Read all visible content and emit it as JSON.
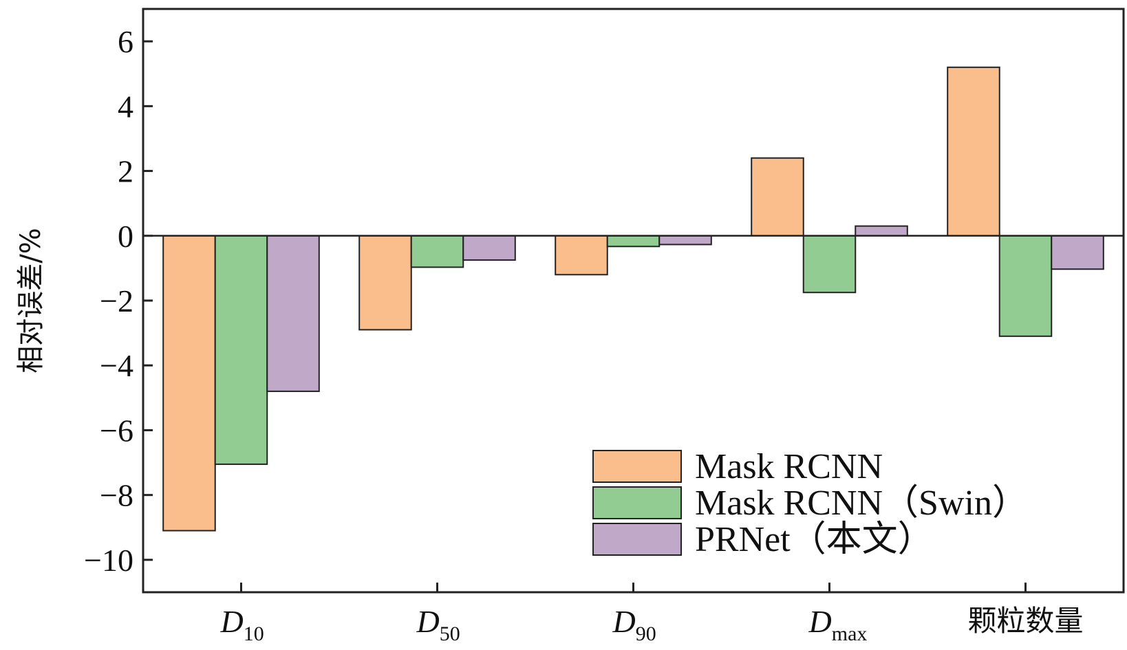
{
  "chart_data": {
    "type": "bar",
    "y_label": "相对误差/%",
    "categories": [
      "D10",
      "D50",
      "D90",
      "Dmax",
      "颗粒数量"
    ],
    "series": [
      {
        "name": "Mask RCNN",
        "color": "#f9be8c",
        "values": [
          -9.1,
          -2.9,
          -1.2,
          2.4,
          5.2
        ]
      },
      {
        "name": "Mask RCNN（Swin）",
        "color": "#93cc93",
        "values": [
          -7.05,
          -0.97,
          -0.33,
          -1.75,
          -3.1
        ]
      },
      {
        "name": "PRNet（本文）",
        "color": "#c0a8c8",
        "values": [
          -4.8,
          -0.75,
          -0.27,
          0.3,
          -1.03
        ]
      }
    ],
    "ylim": [
      -11,
      7
    ],
    "yticks": [
      {
        "value": -10,
        "label": "−10"
      },
      {
        "value": -8,
        "label": "−8"
      },
      {
        "value": -6,
        "label": "−6"
      },
      {
        "value": -4,
        "label": "−4"
      },
      {
        "value": -2,
        "label": "−2"
      },
      0,
      2,
      4,
      6
    ],
    "legend": "lower right"
  }
}
